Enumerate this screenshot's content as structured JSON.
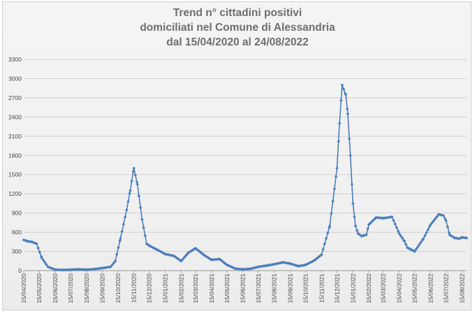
{
  "chart_data": {
    "type": "line",
    "title_lines": [
      "Trend n° cittadini positivi",
      "domiciliati nel Comune di Alessandria",
      "dal 15/04/2020 al 24/08/2022"
    ],
    "xlabel": "",
    "ylabel": "",
    "ylim": [
      0,
      3300
    ],
    "y_ticks": [
      "0",
      "300",
      "600",
      "900",
      "1200",
      "1500",
      "1800",
      "2100",
      "2400",
      "2700",
      "3000",
      "3300"
    ],
    "x_tick_labels": [
      "15/04/2020",
      "15/05/2020",
      "15/06/2020",
      "15/07/2020",
      "15/08/2020",
      "15/09/2020",
      "15/10/2020",
      "15/11/2020",
      "15/12/2020",
      "15/01/2021",
      "15/02/2021",
      "15/03/2021",
      "15/04/2021",
      "15/05/2021",
      "15/06/2021",
      "15/07/2021",
      "15/08/2021",
      "15/09/2021",
      "15/10/2021",
      "15/11/2021",
      "15/12/2021",
      "15/01/2022",
      "15/02/2022",
      "15/03/2022",
      "15/04/2022",
      "15/05/2022",
      "15/06/2022",
      "15/07/2022",
      "15/08/2022"
    ],
    "x_range": [
      "15/04/2020",
      "24/08/2022"
    ],
    "grid": true,
    "legend": "none",
    "series_color": "#4a7ebb",
    "series": [
      {
        "x": [
          "15/04/2020",
          "22/04/2020",
          "01/05/2020",
          "10/05/2020",
          "20/05/2020",
          "01/06/2020",
          "15/06/2020",
          "01/07/2020",
          "15/07/2020",
          "01/08/2020",
          "15/08/2020",
          "01/09/2020",
          "15/09/2020",
          "01/10/2020",
          "10/10/2020",
          "20/10/2020",
          "01/11/2020",
          "08/11/2020",
          "15/11/2020",
          "22/11/2020",
          "01/12/2020",
          "10/12/2020",
          "15/12/2020",
          "01/01/2021",
          "15/01/2021",
          "01/02/2021",
          "15/02/2021",
          "01/03/2021",
          "15/03/2021",
          "01/04/2021",
          "15/04/2021",
          "01/05/2021",
          "15/05/2021",
          "01/06/2021",
          "15/06/2021",
          "01/07/2021",
          "15/07/2021",
          "01/08/2021",
          "15/08/2021",
          "01/09/2021",
          "15/09/2021",
          "01/10/2021",
          "15/10/2021",
          "01/11/2021",
          "15/11/2021",
          "01/12/2021",
          "15/12/2021",
          "20/12/2021",
          "25/12/2021",
          "01/01/2022",
          "05/01/2022",
          "10/01/2022",
          "15/01/2022",
          "20/01/2022",
          "25/01/2022",
          "01/02/2022",
          "10/02/2022",
          "15/02/2022",
          "01/03/2022",
          "15/03/2022",
          "01/04/2022",
          "15/04/2022",
          "25/04/2022",
          "01/05/2022",
          "15/05/2022",
          "01/06/2022",
          "15/06/2022",
          "01/07/2022",
          "10/07/2022",
          "15/07/2022",
          "22/07/2022",
          "01/08/2022",
          "10/08/2022",
          "15/08/2022",
          "24/08/2022"
        ],
        "y": [
          480,
          460,
          450,
          420,
          200,
          60,
          15,
          10,
          15,
          20,
          15,
          25,
          40,
          60,
          150,
          500,
          950,
          1250,
          1600,
          1350,
          800,
          420,
          390,
          320,
          260,
          230,
          150,
          280,
          350,
          240,
          170,
          180,
          90,
          30,
          20,
          30,
          60,
          80,
          100,
          130,
          110,
          70,
          90,
          160,
          250,
          700,
          1600,
          2300,
          2900,
          2750,
          2450,
          1800,
          1050,
          700,
          580,
          540,
          560,
          720,
          830,
          820,
          840,
          580,
          460,
          360,
          300,
          500,
          720,
          880,
          860,
          780,
          560,
          510,
          500,
          520,
          510
        ]
      }
    ]
  }
}
